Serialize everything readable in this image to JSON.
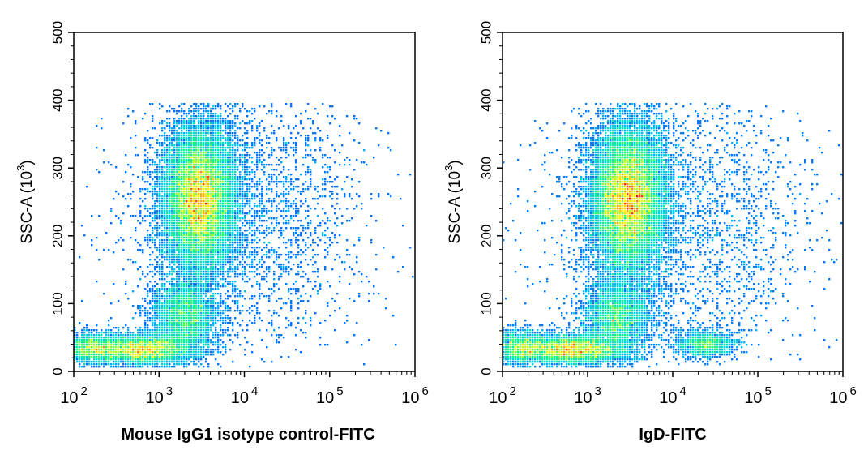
{
  "chart_data": [
    {
      "type": "scatter",
      "title": "",
      "xlabel": "Mouse IgG1 isotype control-FITC",
      "ylabel": {
        "base": "SSC-A  (10",
        "exp": "3",
        "end": ")"
      },
      "x_scale": "log",
      "xlim": [
        100,
        1000000
      ],
      "ylim": [
        0,
        500
      ],
      "x_ticks": [
        {
          "value": 100,
          "base": "10",
          "exp": "2"
        },
        {
          "value": 1000,
          "base": "10",
          "exp": "3"
        },
        {
          "value": 10000,
          "base": "10",
          "exp": "4"
        },
        {
          "value": 100000,
          "base": "10",
          "exp": "5"
        },
        {
          "value": 1000000,
          "base": "10",
          "exp": "6"
        }
      ],
      "y_ticks": [
        0,
        100,
        200,
        300,
        400,
        500
      ],
      "grid": false,
      "color_scale": [
        "#0000ff",
        "#00bfff",
        "#00ff80",
        "#ffff00",
        "#ff0000"
      ],
      "populations": [
        {
          "x_center": 3000,
          "x_spread_decades": 0.22,
          "y_center": 255,
          "y_spread": 55,
          "weight": 0.56
        },
        {
          "x_center": 600,
          "x_spread_decades": 0.32,
          "y_center": 32,
          "y_spread": 11,
          "weight": 0.16
        },
        {
          "x_center": 2000,
          "x_spread_decades": 0.2,
          "y_center": 80,
          "y_spread": 28,
          "weight": 0.12
        },
        {
          "x_center": 160,
          "x_spread_decades": 0.15,
          "y_center": 35,
          "y_spread": 12,
          "weight": 0.05
        },
        {
          "x_center": 10000,
          "x_spread_decades": 0.7,
          "y_center": 230,
          "y_spread": 100,
          "weight": 0.11
        }
      ]
    },
    {
      "type": "scatter",
      "title": "",
      "xlabel": "IgD-FITC",
      "ylabel": {
        "base": "SSC-A  (10",
        "exp": "3",
        "end": ")"
      },
      "x_scale": "log",
      "xlim": [
        100,
        1000000
      ],
      "ylim": [
        0,
        500
      ],
      "x_ticks": [
        {
          "value": 100,
          "base": "10",
          "exp": "2"
        },
        {
          "value": 1000,
          "base": "10",
          "exp": "3"
        },
        {
          "value": 10000,
          "base": "10",
          "exp": "4"
        },
        {
          "value": 100000,
          "base": "10",
          "exp": "5"
        },
        {
          "value": 1000000,
          "base": "10",
          "exp": "6"
        }
      ],
      "y_ticks": [
        0,
        100,
        200,
        300,
        400,
        500
      ],
      "grid": false,
      "color_scale": [
        "#0000ff",
        "#00bfff",
        "#00ff80",
        "#ffff00",
        "#ff0000"
      ],
      "populations": [
        {
          "x_center": 3000,
          "x_spread_decades": 0.22,
          "y_center": 255,
          "y_spread": 55,
          "weight": 0.54
        },
        {
          "x_center": 650,
          "x_spread_decades": 0.32,
          "y_center": 32,
          "y_spread": 11,
          "weight": 0.15
        },
        {
          "x_center": 2200,
          "x_spread_decades": 0.2,
          "y_center": 80,
          "y_spread": 28,
          "weight": 0.11
        },
        {
          "x_center": 160,
          "x_spread_decades": 0.15,
          "y_center": 35,
          "y_spread": 12,
          "weight": 0.05
        },
        {
          "x_center": 25000,
          "x_spread_decades": 0.18,
          "y_center": 40,
          "y_spread": 10,
          "weight": 0.04
        },
        {
          "x_center": 12000,
          "x_spread_decades": 0.75,
          "y_center": 220,
          "y_spread": 110,
          "weight": 0.11
        }
      ]
    }
  ]
}
